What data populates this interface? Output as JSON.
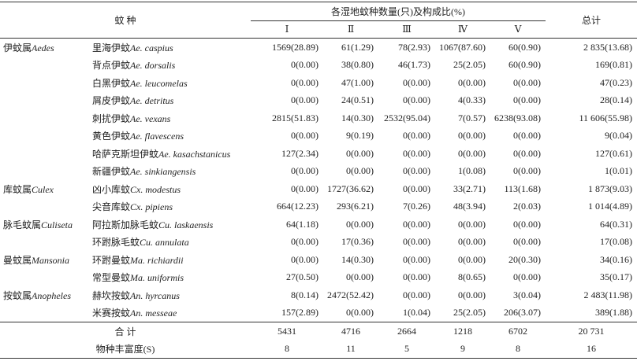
{
  "header": {
    "species": "蚊 种",
    "wetland": "各湿地蚊种数量(只)及构成比(%)",
    "total": "总计",
    "sites": [
      "Ⅰ",
      "Ⅱ",
      "Ⅲ",
      "Ⅳ",
      "Ⅴ"
    ]
  },
  "groups": [
    {
      "genus_cn": "伊蚊属",
      "genus_latin": "Aedes",
      "rows": [
        {
          "species_cn": "里海伊蚊",
          "species_latin": "Ae. caspius",
          "cells": [
            "1569(28.89)",
            "61(1.29)",
            "78(2.93)",
            "1067(87.60)",
            "60(0.90)",
            "2 835(13.68)"
          ]
        },
        {
          "species_cn": "背点伊蚊",
          "species_latin": "Ae. dorsalis",
          "cells": [
            "0(0.00)",
            "38(0.80)",
            "46(1.73)",
            "25(2.05)",
            "60(0.90)",
            "169(0.81)"
          ]
        },
        {
          "species_cn": "白黑伊蚊",
          "species_latin": "Ae. leucomelas",
          "cells": [
            "0(0.00)",
            "47(1.00)",
            "0(0.00)",
            "0(0.00)",
            "0(0.00)",
            "47(0.23)"
          ]
        },
        {
          "species_cn": "屑皮伊蚊",
          "species_latin": "Ae. detritus",
          "cells": [
            "0(0.00)",
            "24(0.51)",
            "0(0.00)",
            "4(0.33)",
            "0(0.00)",
            "28(0.14)"
          ]
        },
        {
          "species_cn": "刺扰伊蚊",
          "species_latin": "Ae. vexans",
          "cells": [
            "2815(51.83)",
            "14(0.30)",
            "2532(95.04)",
            "7(0.57)",
            "6238(93.08)",
            "11 606(55.98)"
          ]
        },
        {
          "species_cn": "黄色伊蚊",
          "species_latin": "Ae. flavescens",
          "cells": [
            "0(0.00)",
            "9(0.19)",
            "0(0.00)",
            "0(0.00)",
            "0(0.00)",
            "9(0.04)"
          ]
        },
        {
          "species_cn": "哈萨克斯坦伊蚊",
          "species_latin": "Ae. kasachstanicus",
          "cells": [
            "127(2.34)",
            "0(0.00)",
            "0(0.00)",
            "0(0.00)",
            "0(0.00)",
            "127(0.61)"
          ]
        },
        {
          "species_cn": "新疆伊蚊",
          "species_latin": "Ae. sinkiangensis",
          "cells": [
            "0(0.00)",
            "0(0.00)",
            "0(0.00)",
            "1(0.08)",
            "0(0.00)",
            "1(0.01)"
          ]
        }
      ]
    },
    {
      "genus_cn": "库蚊属",
      "genus_latin": "Culex",
      "rows": [
        {
          "species_cn": "凶小库蚊",
          "species_latin": "Cx. modestus",
          "cells": [
            "0(0.00)",
            "1727(36.62)",
            "0(0.00)",
            "33(2.71)",
            "113(1.68)",
            "1 873(9.03)"
          ]
        },
        {
          "species_cn": "尖音库蚊",
          "species_latin": "Cx. pipiens",
          "cells": [
            "664(12.23)",
            "293(6.21)",
            "7(0.26)",
            "48(3.94)",
            "2(0.03)",
            "1 014(4.89)"
          ]
        }
      ]
    },
    {
      "genus_cn": "脉毛蚊属",
      "genus_latin": "Culiseta",
      "rows": [
        {
          "species_cn": "阿拉斯加脉毛蚊",
          "species_latin": "Cu. laskaensis",
          "cells": [
            "64(1.18)",
            "0(0.00)",
            "0(0.00)",
            "0(0.00)",
            "0(0.00)",
            "64(0.31)"
          ]
        },
        {
          "species_cn": "环跗脉毛蚊",
          "species_latin": "Cu. annulata",
          "cells": [
            "0(0.00)",
            "17(0.36)",
            "0(0.00)",
            "0(0.00)",
            "0(0.00)",
            "17(0.08)"
          ]
        }
      ]
    },
    {
      "genus_cn": "曼蚊属",
      "genus_latin": "Mansonia",
      "rows": [
        {
          "species_cn": "环跗曼蚊",
          "species_latin": "Ma. richiardii",
          "cells": [
            "0(0.00)",
            "14(0.30)",
            "0(0.00)",
            "0(0.00)",
            "20(0.30)",
            "34(0.16)"
          ]
        },
        {
          "species_cn": "常型曼蚊",
          "species_latin": "Ma. uniformis",
          "cells": [
            "27(0.50)",
            "0(0.00)",
            "0(0.00)",
            "8(0.65)",
            "0(0.00)",
            "35(0.17)"
          ]
        }
      ]
    },
    {
      "genus_cn": "按蚊属",
      "genus_latin": "Anopheles",
      "rows": [
        {
          "species_cn": "赫坎按蚊",
          "species_latin": "An. hyrcanus",
          "cells": [
            "8(0.14)",
            "2472(52.42)",
            "0(0.00)",
            "0(0.00)",
            "3(0.04)",
            "2 483(11.98)"
          ]
        },
        {
          "species_cn": "米赛按蚊",
          "species_latin": "An. messeae",
          "cells": [
            "157(2.89)",
            "0(0.00)",
            "1(0.04)",
            "25(2.05)",
            "206(3.07)",
            "389(1.88)"
          ]
        }
      ]
    }
  ],
  "footer": [
    {
      "label": "合 计",
      "cells": [
        "5431",
        "4716",
        "2664",
        "1218",
        "6702",
        "20 731"
      ]
    },
    {
      "label": "物种丰富度(S)",
      "cells": [
        "8",
        "11",
        "5",
        "9",
        "8",
        "16"
      ]
    }
  ]
}
